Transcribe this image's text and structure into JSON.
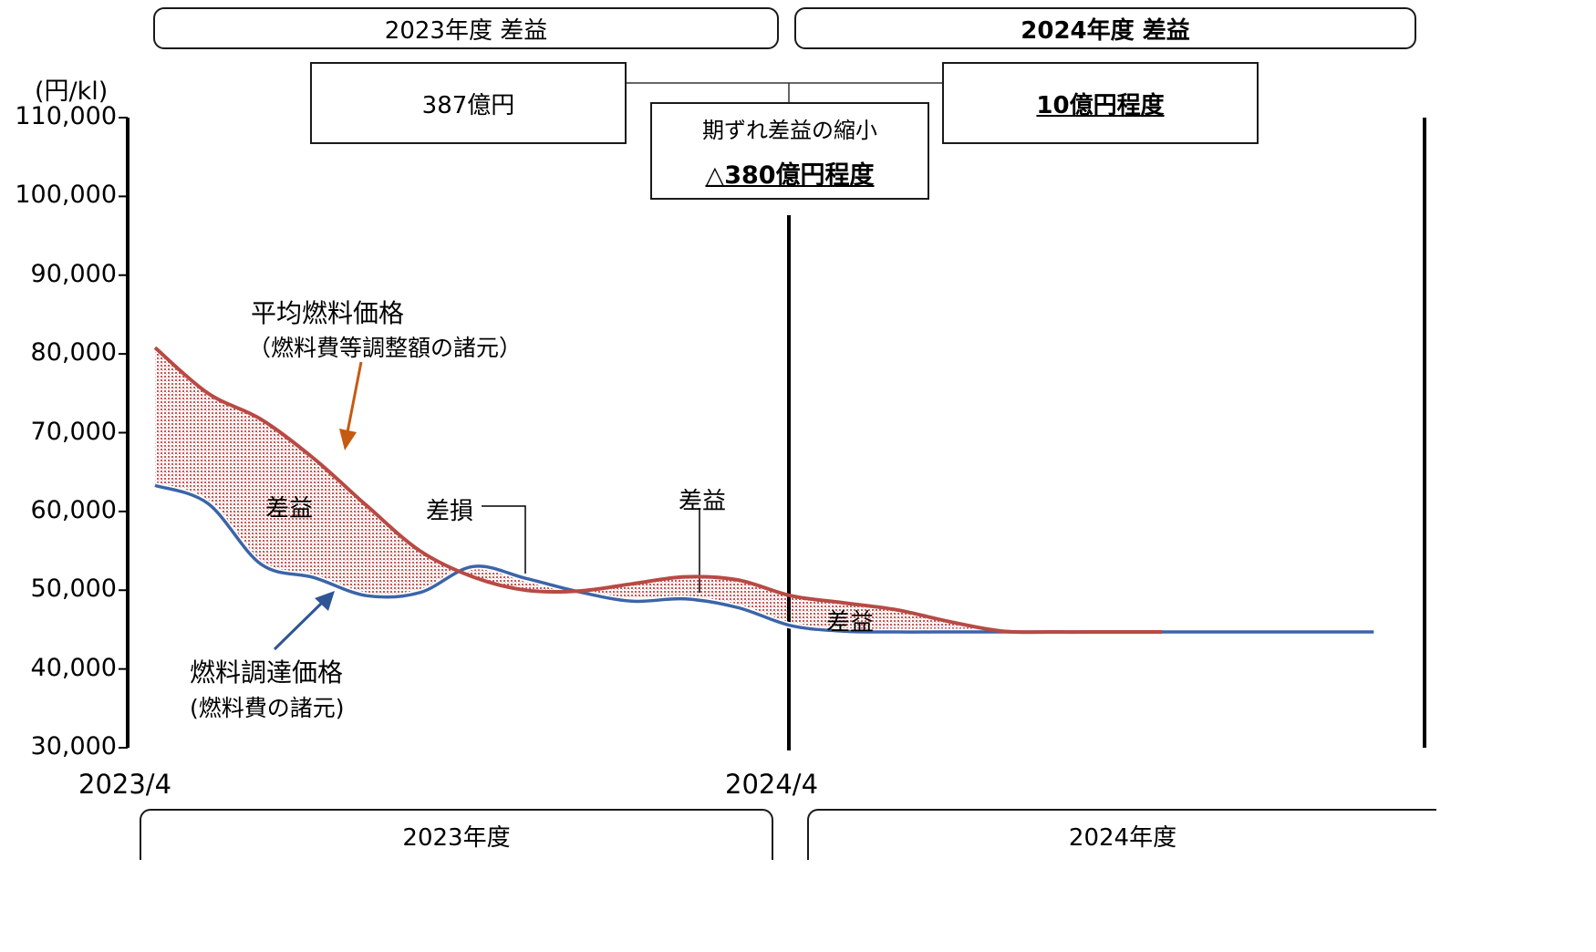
{
  "header": {
    "fy2023_label": "2023年度 差益",
    "fy2024_label": "2024年度 差益",
    "fy2023_value": "387億円",
    "fy2024_value": "10億円程度",
    "center_title": "期ずれ差益の縮小",
    "center_value": "△380億円程度"
  },
  "footer": {
    "fy2023": "2023年度",
    "fy2024": "2024年度"
  },
  "annotations": {
    "avg_price_title": "平均燃料価格",
    "avg_price_sub": "（燃料費等調整額の諸元）",
    "proc_price_title": "燃料調達価格",
    "proc_price_sub": "(燃料費の諸元)",
    "gain1": "差益",
    "loss": "差損",
    "gain2": "差益",
    "gain3": "差益"
  },
  "colors": {
    "avg_line": "#b84a44",
    "proc_line": "#3c64a8",
    "fill_dots": "#c0504d",
    "arrow_orange": "#c55a11",
    "arrow_blue": "#2f5597"
  },
  "chart_data": {
    "type": "line",
    "title": "",
    "ylabel": "(円/kl)",
    "xlabel": "",
    "ylim": [
      30000,
      110000
    ],
    "yticks": [
      110000,
      100000,
      90000,
      80000,
      70000,
      60000,
      50000,
      40000,
      30000
    ],
    "ytick_labels": [
      "110,000",
      "100,000",
      "90,000",
      "80,000",
      "70,000",
      "60,000",
      "50,000",
      "40,000",
      "30,000"
    ],
    "xtick_labels": [
      "2023/4",
      "2024/4"
    ],
    "x_months": [
      0,
      1,
      2,
      3,
      4,
      5,
      6,
      7,
      8,
      9,
      10,
      11,
      12,
      13,
      14,
      15,
      16,
      17,
      18,
      19,
      20,
      21,
      22,
      23
    ],
    "series": [
      {
        "name": "平均燃料価格",
        "values": [
          80800,
          75000,
          71700,
          66700,
          60700,
          55000,
          51700,
          50000,
          49900,
          50800,
          51700,
          51300,
          49300,
          48400,
          47500,
          46000,
          44800,
          44700,
          44700,
          44700
        ]
      },
      {
        "name": "燃料調達価格",
        "values": [
          63300,
          61000,
          53300,
          51600,
          49300,
          49700,
          53000,
          51500,
          49800,
          48600,
          48900,
          47800,
          45500,
          44800,
          44700,
          44700,
          44700,
          44700,
          44700,
          44700,
          44700,
          44700,
          44700,
          44700
        ]
      }
    ]
  }
}
